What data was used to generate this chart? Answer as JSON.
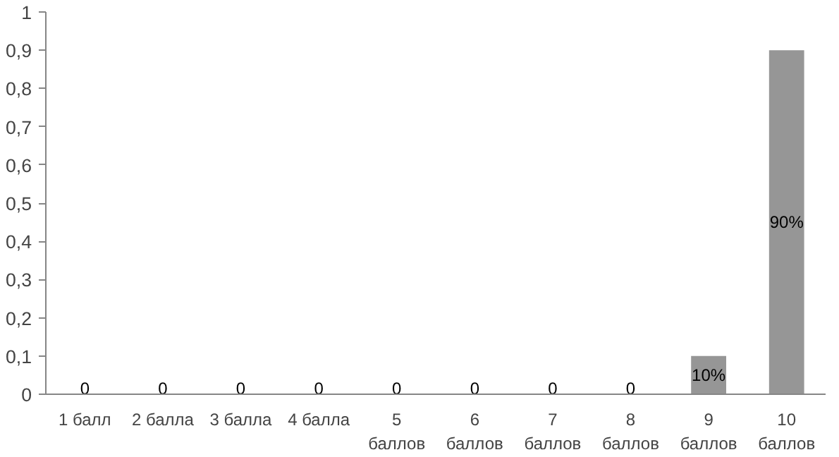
{
  "chart_data": {
    "type": "bar",
    "categories": [
      "1 балл",
      "2 балла",
      "3 балла",
      "4 балла",
      "5 баллов",
      "6 баллов",
      "7 баллов",
      "8 баллов",
      "9 баллов",
      "10 баллов"
    ],
    "values": [
      0,
      0,
      0,
      0,
      0,
      0,
      0,
      0,
      0.1,
      0.9
    ],
    "value_labels": [
      "0",
      "0",
      "0",
      "0",
      "0",
      "0",
      "0",
      "0",
      "10%",
      "90%"
    ],
    "color": "#969696",
    "ylim": [
      0,
      1
    ],
    "yticks": [
      0,
      {
        "value": 0.1,
        "label": "0,1"
      },
      {
        "value": 0.2,
        "label": "0,2"
      },
      {
        "value": 0.3,
        "label": "0,3"
      },
      {
        "value": 0.4,
        "label": "0,4"
      },
      {
        "value": 0.5,
        "label": "0,5"
      },
      {
        "value": 0.6,
        "label": "0,6"
      },
      {
        "value": 0.7,
        "label": "0,7"
      },
      {
        "value": 0.8,
        "label": "0,8"
      },
      {
        "value": 0.9,
        "label": "0,9"
      },
      1
    ],
    "grid": false
  }
}
